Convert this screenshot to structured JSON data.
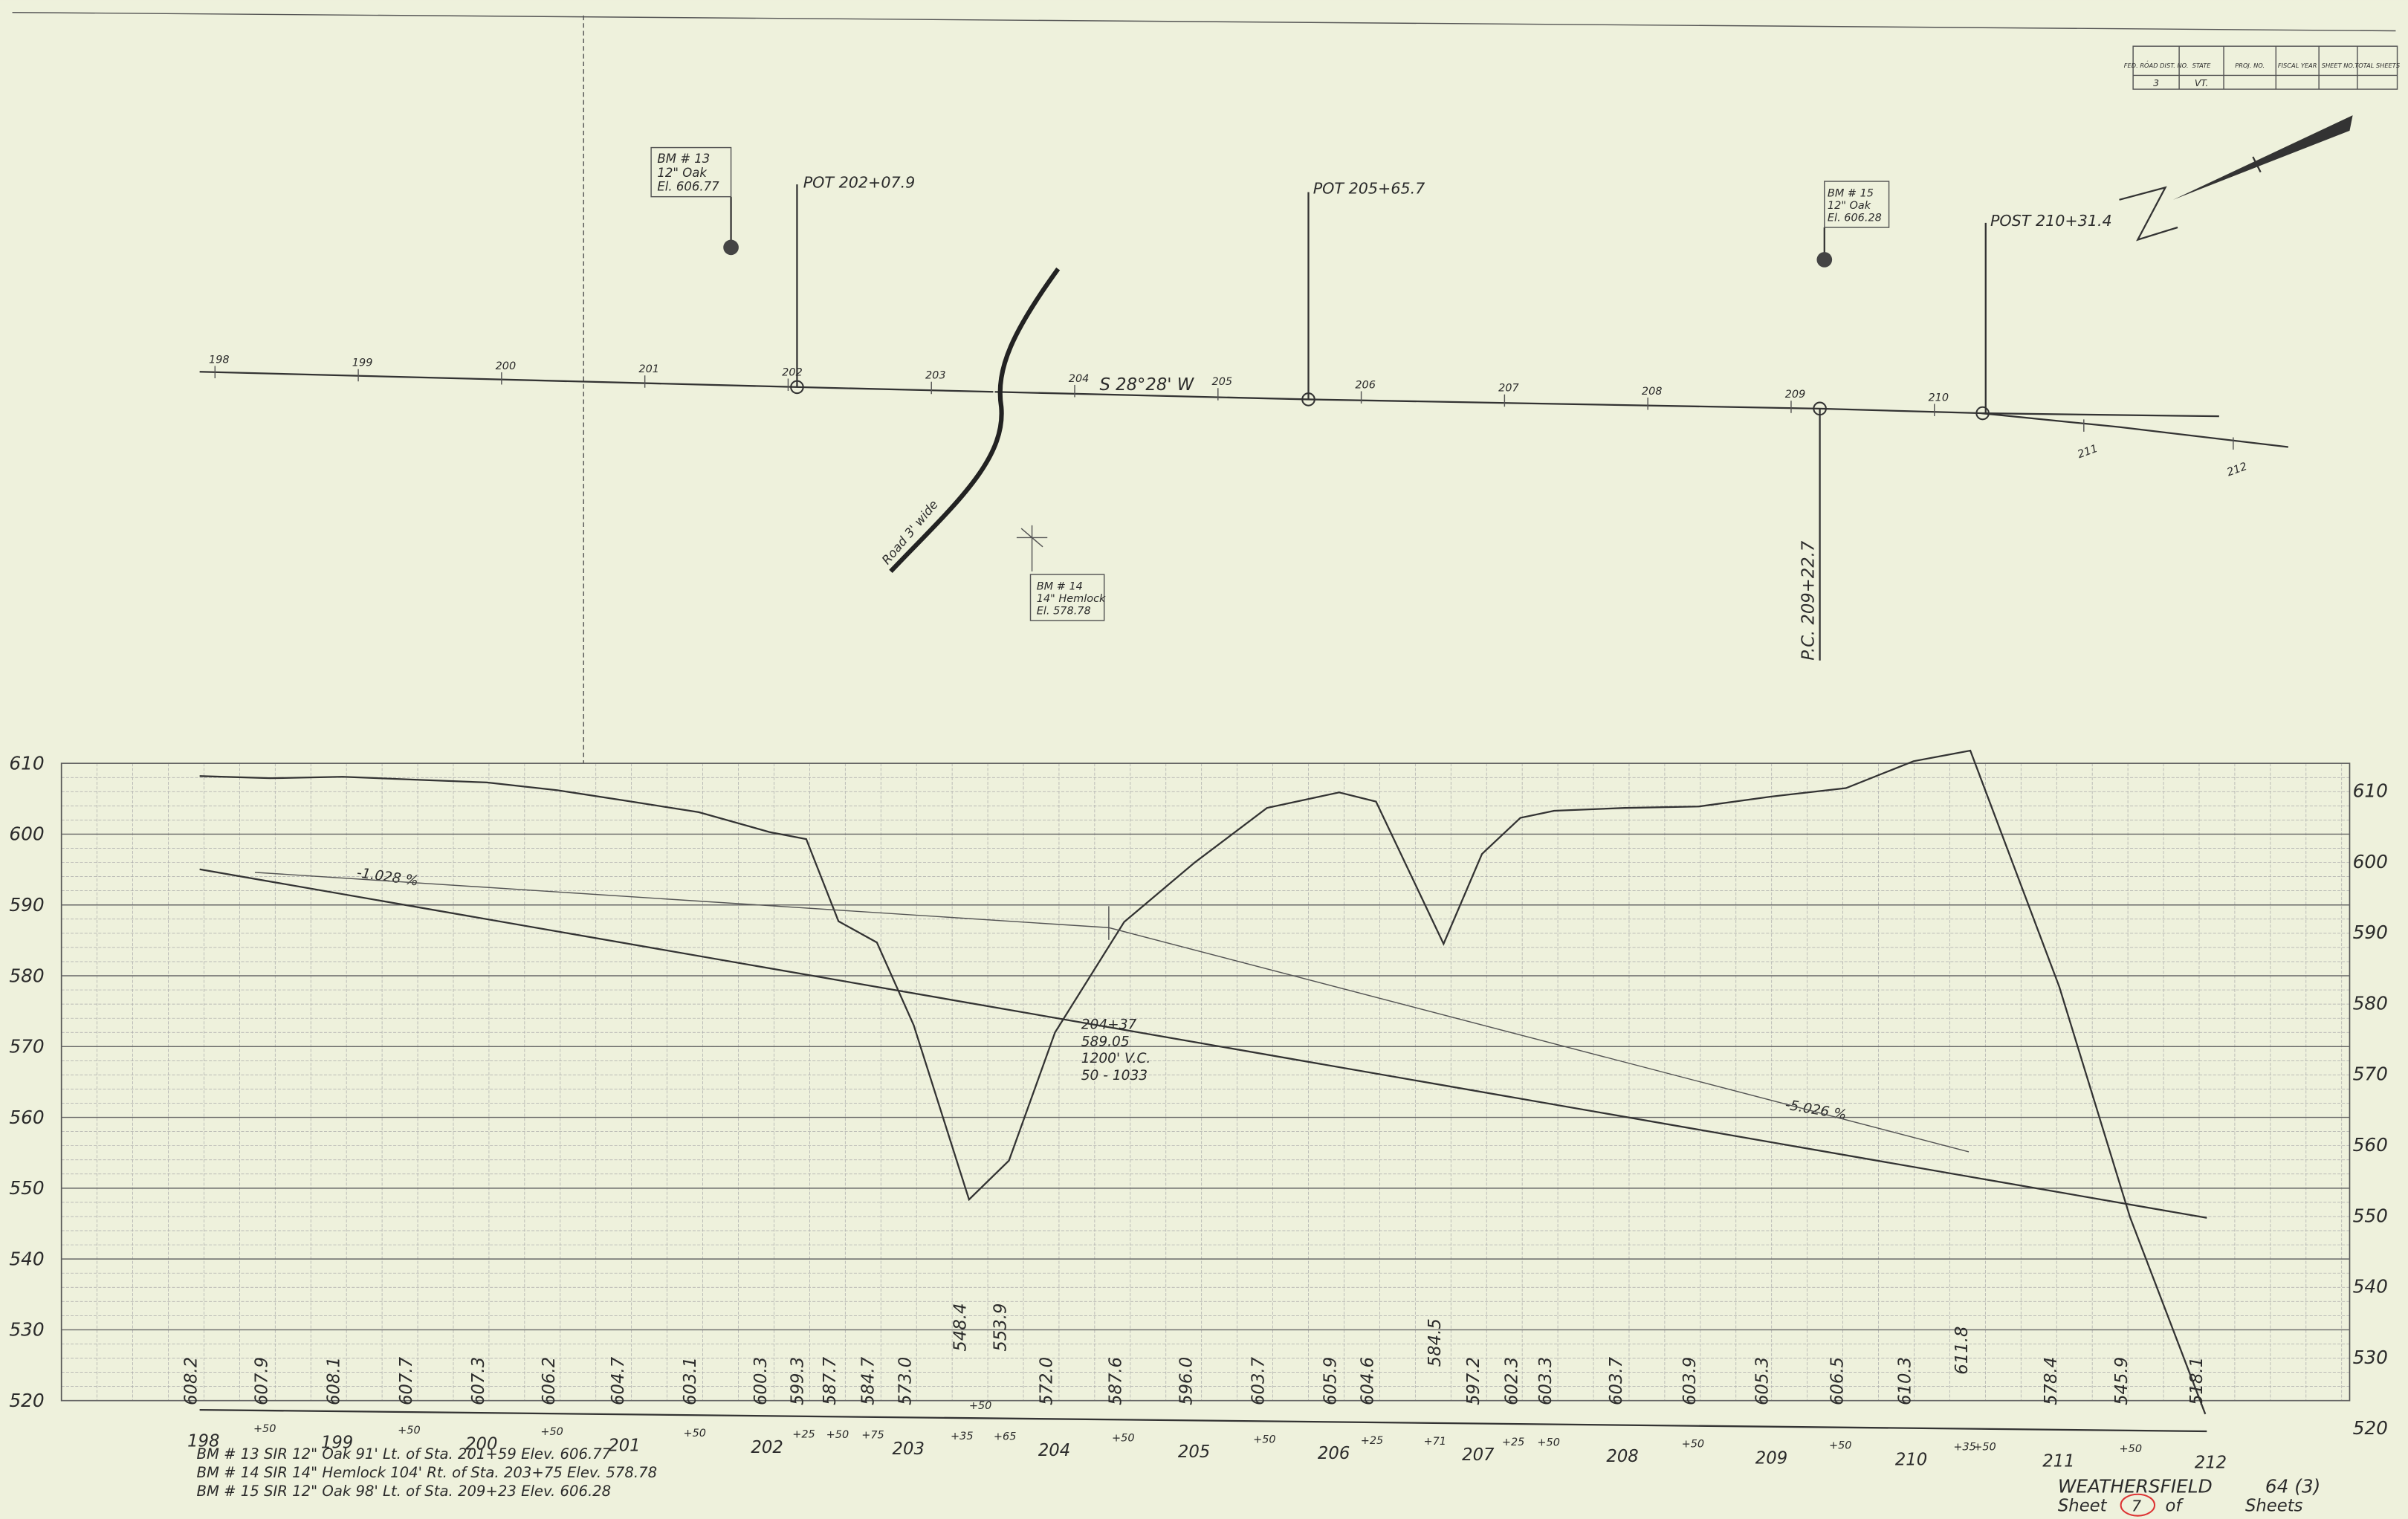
{
  "title_block": {
    "headers": [
      "FED. ROAD DIST. NO.",
      "STATE",
      "PROJ. NO.",
      "FISCAL YEAR",
      "SHEET NO.",
      "TOTAL SHEETS"
    ],
    "values": [
      "3",
      "VT."
    ]
  },
  "north": "N",
  "plan": {
    "stations": [
      "198",
      "199",
      "200",
      "201",
      "202",
      "203",
      "204",
      "205",
      "206",
      "207",
      "208",
      "209",
      "210",
      "211",
      "212"
    ],
    "bearing": "S 28°28' W",
    "road": "Road 3' wide",
    "callouts": [
      {
        "lines": [
          "BM # 13",
          "12\" Oak",
          "El. 606.77"
        ]
      },
      {
        "lines": [
          "POT 202+07.9"
        ]
      },
      {
        "lines": [
          "POT 205+65.7"
        ]
      },
      {
        "lines": [
          "BM # 15",
          "12\" Oak",
          "El. 606.28"
        ]
      },
      {
        "lines": [
          "POST 210+31.4"
        ]
      },
      {
        "lines": [
          "BM # 14",
          "14\" Hemlock",
          "El. 578.78"
        ]
      },
      {
        "lines": [
          "P.C. 209+22.7"
        ]
      }
    ]
  },
  "profile": {
    "elevations": [
      610,
      600,
      590,
      580,
      570,
      560,
      550,
      540,
      530,
      520
    ],
    "ground": [
      "608.2",
      "607.9",
      "608.1",
      "607.7",
      "607.3",
      "606.2",
      "604.7",
      "603.1",
      "600.3",
      "599.3",
      "587.7",
      "584.7",
      "573.0",
      "548.4",
      "553.9",
      "572.0",
      "587.6",
      "596.0",
      "603.7",
      "605.9",
      "604.6",
      "584.5",
      "597.2",
      "602.3",
      "603.3",
      "603.7",
      "603.9",
      "605.3",
      "606.5",
      "610.3",
      "611.8",
      "578.4",
      "545.9",
      "518.1"
    ],
    "stations": [
      "198",
      "+50",
      "199",
      "+50",
      "200",
      "+50",
      "201",
      "+50",
      "202",
      "+25",
      "+50",
      "+75",
      "203",
      "+35",
      "+50",
      "+65",
      "204",
      "+50",
      "205",
      "+50",
      "206",
      "+25",
      "+71",
      "207",
      "+25",
      "+50",
      "208",
      "+50",
      "209",
      "+50",
      "210",
      "+35",
      "+50",
      "211",
      "+50",
      "212"
    ],
    "grade_1": "-1.028 %",
    "grade_2": "-5.026 %",
    "vertical_curve": [
      "204+37",
      "589.05",
      "1200' V.C.",
      "50 - 1033"
    ]
  },
  "notes": [
    "BM # 13   SIR   12\" Oak   91' Lt. of Sta. 201+59   Elev. 606.77",
    "BM # 14   SIR   14\" Hemlock 104' Rt. of Sta. 203+75   Elev. 578.78",
    "BM # 15   SIR   12\" Oak   98' Lt. of Sta. 209+23   Elev. 606.28"
  ],
  "sheet": {
    "name": "WEATHERSFIELD",
    "number": "64 (3)",
    "sheet_label": "Sheet",
    "sheet_no": "7",
    "of": "of",
    "sheets": "Sheets"
  }
}
